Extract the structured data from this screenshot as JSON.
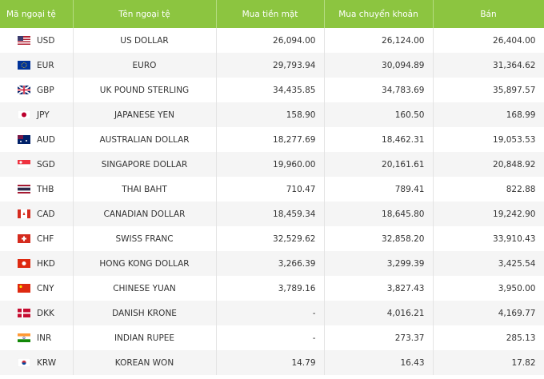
{
  "table": {
    "header": [
      "Mã ngoại tệ",
      "Tên ngoại tệ",
      "Mua tiền mặt",
      "Mua chuyển khoản",
      "Bán"
    ],
    "rows": [
      [
        "USD",
        "US DOLLAR",
        "26,094.00",
        "26,124.00",
        "26,404.00"
      ],
      [
        "EUR",
        "EURO",
        "29,793.94",
        "30,094.89",
        "31,364.62"
      ],
      [
        "GBP",
        "UK POUND STERLING",
        "34,435.85",
        "34,783.69",
        "35,897.57"
      ],
      [
        "JPY",
        "JAPANESE YEN",
        "158.90",
        "160.50",
        "168.99"
      ],
      [
        "AUD",
        "AUSTRALIAN DOLLAR",
        "18,277.69",
        "18,462.31",
        "19,053.53"
      ],
      [
        "SGD",
        "SINGAPORE DOLLAR",
        "19,960.00",
        "20,161.61",
        "20,848.92"
      ],
      [
        "THB",
        "THAI BAHT",
        "710.47",
        "789.41",
        "822.88"
      ],
      [
        "CAD",
        "CANADIAN DOLLAR",
        "18,459.34",
        "18,645.80",
        "19,242.90"
      ],
      [
        "CHF",
        "SWISS FRANC",
        "32,529.62",
        "32,858.20",
        "33,910.43"
      ],
      [
        "HKD",
        "HONG KONG DOLLAR",
        "3,266.39",
        "3,299.39",
        "3,425.54"
      ],
      [
        "CNY",
        "CHINESE YUAN",
        "3,789.16",
        "3,827.43",
        "3,950.00"
      ],
      [
        "DKK",
        "DANISH KRONE",
        "-",
        "4,016.21",
        "4,169.77"
      ],
      [
        "INR",
        "INDIAN RUPEE",
        "-",
        "273.37",
        "285.13"
      ],
      [
        "KRW",
        "KOREAN WON",
        "14.79",
        "16.43",
        "17.82"
      ]
    ]
  }
}
